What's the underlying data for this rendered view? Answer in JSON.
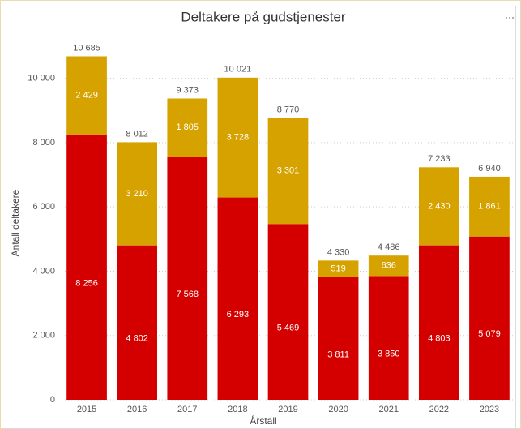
{
  "chart_data": {
    "type": "stacked_bar",
    "title": "Deltakere på gudstjenester",
    "x_label": "Årstall",
    "y_label": "Antall deltakere",
    "categories": [
      "2015",
      "2016",
      "2017",
      "2018",
      "2019",
      "2020",
      "2021",
      "2022",
      "2023"
    ],
    "series": [
      {
        "color": "#d40000",
        "values": [
          8256,
          4802,
          7568,
          6293,
          5469,
          3811,
          3850,
          4803,
          5079
        ],
        "value_labels": [
          "8 256",
          "4 802",
          "7 568",
          "6 293",
          "5 469",
          "3 811",
          "3 850",
          "4 803",
          "5 079"
        ]
      },
      {
        "color": "#d6a200",
        "values": [
          2429,
          3210,
          1805,
          3728,
          3301,
          519,
          636,
          2430,
          1861
        ],
        "value_labels": [
          "2 429",
          "3 210",
          "1 805",
          "3 728",
          "3 301",
          "519",
          "636",
          "2 430",
          "1 861"
        ]
      }
    ],
    "totals": [
      10685,
      8012,
      9373,
      10021,
      8770,
      4330,
      4486,
      7233,
      6940
    ],
    "total_labels": [
      "10 685",
      "8 012",
      "9 373",
      "10 021",
      "8 770",
      "4 330",
      "4 486",
      "7 233",
      "6 940"
    ],
    "ylim": [
      0,
      11000
    ],
    "yticks": [
      0,
      {
        "value": 2000,
        "label": "2 000"
      },
      {
        "value": 4000,
        "label": "4 000"
      },
      {
        "value": 6000,
        "label": "6 000"
      },
      {
        "value": 8000,
        "label": "8 000"
      },
      {
        "value": 10000,
        "label": "10 000"
      }
    ],
    "grid": true
  }
}
